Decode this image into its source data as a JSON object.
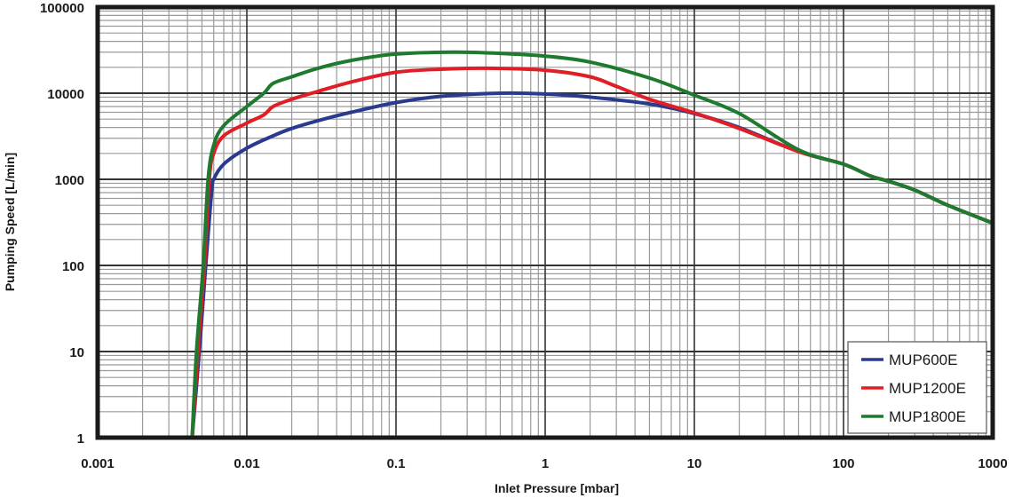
{
  "chart_data": {
    "type": "line",
    "title": "",
    "xlabel": "Inlet Pressure [mbar]",
    "ylabel": "Pumping Speed [L/min]",
    "xscale": "log",
    "yscale": "log",
    "xlim": [
      0.001,
      1000
    ],
    "ylim": [
      1,
      100000
    ],
    "x_ticks": [
      "0.001",
      "0.01",
      "0.1",
      "1",
      "10",
      "100",
      "1000"
    ],
    "y_ticks": [
      "1",
      "10",
      "100",
      "1000",
      "10000",
      "100000"
    ],
    "grid": true,
    "legend_position": "lower right",
    "series": [
      {
        "name": "MUP600E",
        "color": "#2a3a8f",
        "points": [
          [
            0.0043,
            1
          ],
          [
            0.0048,
            10
          ],
          [
            0.0053,
            100
          ],
          [
            0.0058,
            700
          ],
          [
            0.006,
            1000
          ],
          [
            0.007,
            1500
          ],
          [
            0.01,
            2300
          ],
          [
            0.015,
            3200
          ],
          [
            0.02,
            3900
          ],
          [
            0.03,
            4800
          ],
          [
            0.05,
            6000
          ],
          [
            0.1,
            7800
          ],
          [
            0.2,
            9200
          ],
          [
            0.5,
            10000
          ],
          [
            1,
            9800
          ],
          [
            2,
            9000
          ],
          [
            5,
            7500
          ],
          [
            10,
            5800
          ],
          [
            20,
            4000
          ],
          [
            50,
            2100
          ],
          [
            100,
            1500
          ],
          [
            150,
            1100
          ],
          [
            200,
            950
          ],
          [
            300,
            750
          ],
          [
            500,
            500
          ],
          [
            1000,
            310
          ]
        ]
      },
      {
        "name": "MUP1200E",
        "color": "#e01e25",
        "points": [
          [
            0.0043,
            1
          ],
          [
            0.0047,
            10
          ],
          [
            0.0052,
            100
          ],
          [
            0.0056,
            1000
          ],
          [
            0.006,
            2000
          ],
          [
            0.007,
            3200
          ],
          [
            0.01,
            4500
          ],
          [
            0.013,
            5600
          ],
          [
            0.015,
            7000
          ],
          [
            0.02,
            8500
          ],
          [
            0.03,
            10500
          ],
          [
            0.05,
            13500
          ],
          [
            0.1,
            17500
          ],
          [
            0.2,
            19000
          ],
          [
            0.4,
            19500
          ],
          [
            1,
            18500
          ],
          [
            2,
            15500
          ],
          [
            3,
            12000
          ],
          [
            5,
            8500
          ],
          [
            10,
            5900
          ],
          [
            20,
            3900
          ],
          [
            50,
            2100
          ],
          [
            100,
            1500
          ],
          [
            150,
            1100
          ],
          [
            200,
            950
          ],
          [
            300,
            750
          ],
          [
            500,
            500
          ],
          [
            1000,
            310
          ]
        ]
      },
      {
        "name": "MUP1800E",
        "color": "#1e7a2e",
        "points": [
          [
            0.0043,
            1
          ],
          [
            0.0046,
            10
          ],
          [
            0.0051,
            100
          ],
          [
            0.0055,
            1000
          ],
          [
            0.006,
            2500
          ],
          [
            0.007,
            4200
          ],
          [
            0.01,
            7000
          ],
          [
            0.013,
            10000
          ],
          [
            0.015,
            13000
          ],
          [
            0.02,
            15500
          ],
          [
            0.03,
            19500
          ],
          [
            0.05,
            24000
          ],
          [
            0.1,
            28500
          ],
          [
            0.25,
            30000
          ],
          [
            0.5,
            29000
          ],
          [
            1,
            27000
          ],
          [
            2,
            23000
          ],
          [
            5,
            15000
          ],
          [
            10,
            9500
          ],
          [
            20,
            5800
          ],
          [
            50,
            2200
          ],
          [
            100,
            1500
          ],
          [
            150,
            1100
          ],
          [
            200,
            950
          ],
          [
            300,
            750
          ],
          [
            500,
            500
          ],
          [
            1000,
            310
          ]
        ]
      }
    ]
  }
}
